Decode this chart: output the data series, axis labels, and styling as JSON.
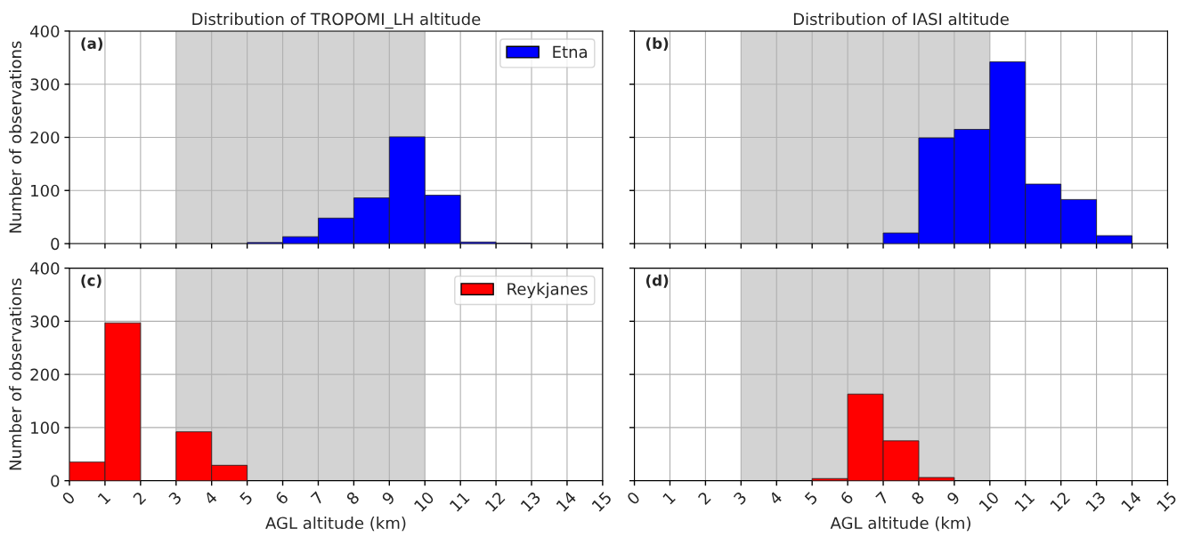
{
  "chart_data": [
    {
      "type": "histogram",
      "title": "Distribution of TROPOMI_LH altitude",
      "ylabel": "Number of observations",
      "annotations": [
        "(a)"
      ],
      "bins": [
        0,
        1,
        2,
        3,
        4,
        5,
        6,
        7,
        8,
        9,
        10,
        11,
        12,
        13,
        14,
        15
      ],
      "series": [
        {
          "name": "Etna",
          "color": "#0000ff",
          "values": [
            0,
            0,
            0,
            0,
            0,
            2,
            13,
            48,
            86,
            201,
            91,
            3,
            1,
            0,
            0
          ]
        }
      ],
      "xlim": [
        0,
        15
      ],
      "xticks": [
        0,
        1,
        2,
        3,
        4,
        5,
        6,
        7,
        8,
        9,
        10,
        11,
        12,
        13,
        14,
        15
      ],
      "ylim": [
        0,
        400
      ],
      "yticks": [
        0,
        100,
        200,
        300,
        400
      ],
      "bands": [
        {
          "axis": "x",
          "from": 3,
          "to": 10,
          "color": "#d3d3d3"
        }
      ],
      "grid": true,
      "legend": "top right",
      "tick_labels": "y"
    },
    {
      "type": "histogram",
      "title": "Distribution of IASI altitude",
      "annotations": [
        "(b)"
      ],
      "bins": [
        0,
        1,
        2,
        3,
        4,
        5,
        6,
        7,
        8,
        9,
        10,
        11,
        12,
        13,
        14,
        15
      ],
      "series": [
        {
          "color": "#0000ff",
          "values": [
            0,
            0,
            0,
            0,
            0,
            0,
            0,
            20,
            199,
            215,
            342,
            112,
            83,
            15,
            0
          ]
        }
      ],
      "xlim": [
        0,
        15
      ],
      "xticks": [
        0,
        1,
        2,
        3,
        4,
        5,
        6,
        7,
        8,
        9,
        10,
        11,
        12,
        13,
        14,
        15
      ],
      "ylim": [
        0,
        400
      ],
      "yticks": [
        0,
        100,
        200,
        300,
        400
      ],
      "bands": [
        {
          "axis": "x",
          "from": 3,
          "to": 10,
          "color": "#d3d3d3"
        }
      ],
      "grid": true,
      "tick_labels": false
    },
    {
      "type": "histogram",
      "xlabel": "AGL altitude (km)",
      "ylabel": "Number of observations",
      "annotations": [
        "(c)"
      ],
      "bins": [
        0,
        1,
        2,
        3,
        4,
        5,
        6,
        7,
        8,
        9,
        10,
        11,
        12,
        13,
        14,
        15
      ],
      "series": [
        {
          "name": "Reykjanes",
          "color": "#ff0000",
          "values": [
            35,
            297,
            0,
            92,
            29,
            0,
            0,
            0,
            0,
            0,
            0,
            0,
            0,
            0,
            0
          ]
        }
      ],
      "xlim": [
        0,
        15
      ],
      "xticks": [
        0,
        1,
        2,
        3,
        4,
        5,
        6,
        7,
        8,
        9,
        10,
        11,
        12,
        13,
        14,
        15
      ],
      "ylim": [
        0,
        400
      ],
      "yticks": [
        0,
        100,
        200,
        300,
        400
      ],
      "bands": [
        {
          "axis": "x",
          "from": 3,
          "to": 10,
          "color": "#d3d3d3"
        }
      ],
      "grid": true,
      "legend": "top right"
    },
    {
      "type": "histogram",
      "xlabel": "AGL altitude (km)",
      "annotations": [
        "(d)"
      ],
      "bins": [
        0,
        1,
        2,
        3,
        4,
        5,
        6,
        7,
        8,
        9,
        10,
        11,
        12,
        13,
        14,
        15
      ],
      "series": [
        {
          "color": "#ff0000",
          "values": [
            0,
            0,
            0,
            0,
            0,
            4,
            163,
            75,
            6,
            0,
            0,
            0,
            0,
            0,
            0
          ]
        }
      ],
      "xlim": [
        0,
        15
      ],
      "xticks": [
        0,
        1,
        2,
        3,
        4,
        5,
        6,
        7,
        8,
        9,
        10,
        11,
        12,
        13,
        14,
        15
      ],
      "ylim": [
        0,
        400
      ],
      "yticks": [
        0,
        100,
        200,
        300,
        400
      ],
      "bands": [
        {
          "axis": "x",
          "from": 3,
          "to": 10,
          "color": "#d3d3d3"
        }
      ],
      "grid": true,
      "tick_labels": "x"
    }
  ]
}
